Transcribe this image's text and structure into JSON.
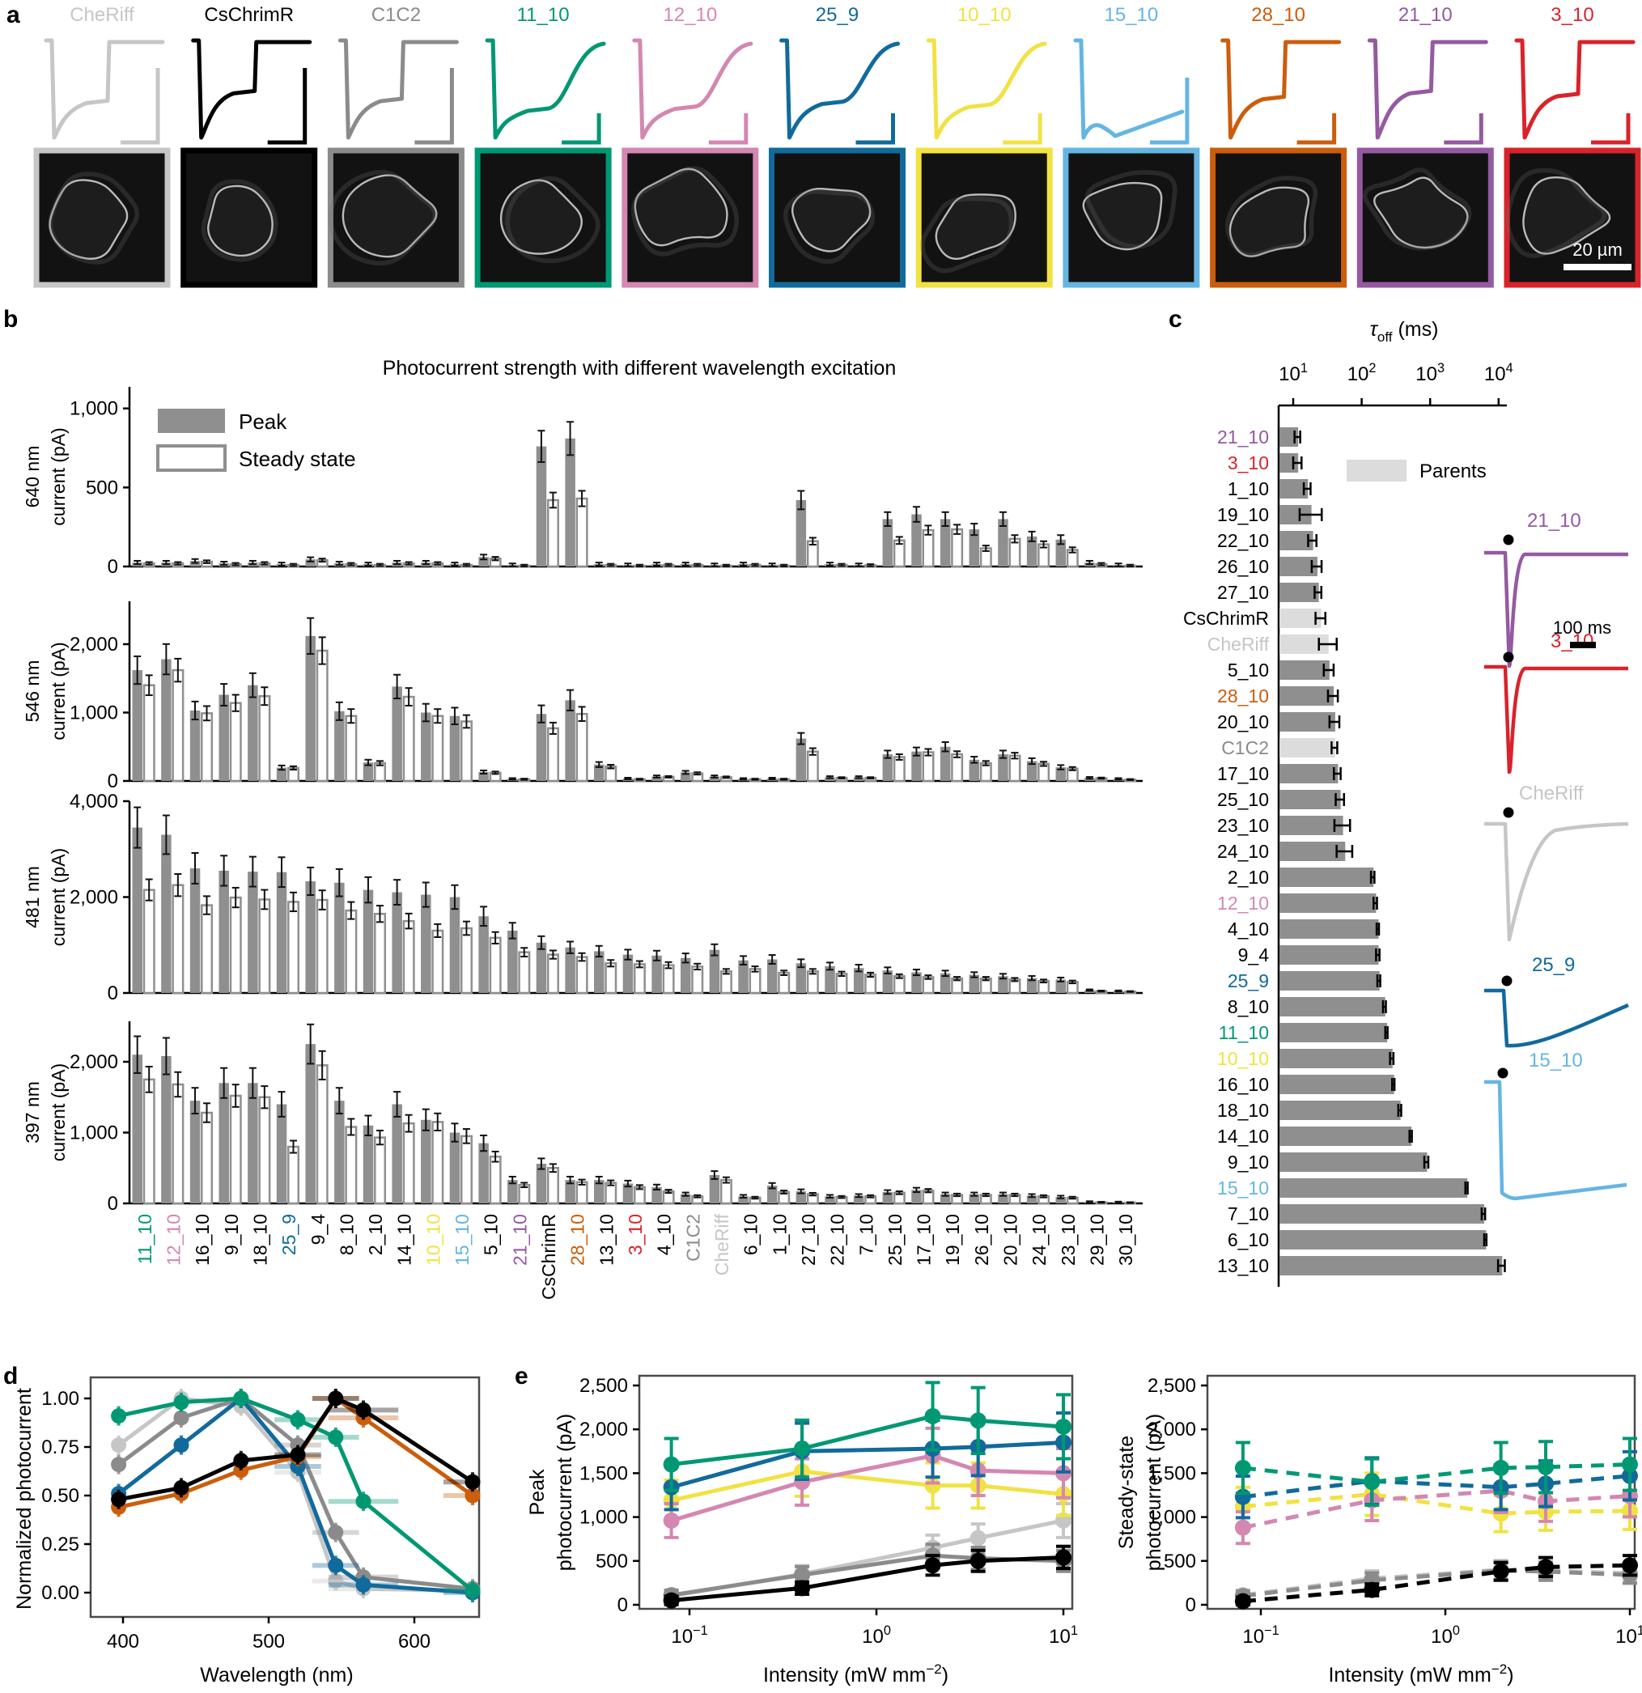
{
  "panels": {
    "a": "a",
    "b": "b",
    "c": "c",
    "d": "d",
    "e": "e"
  },
  "colors": {
    "CheRiff": "#C6C6C6",
    "CsChrimR": "#000000",
    "C1C2": "#8B8B8B",
    "11_10": "#009873",
    "12_10": "#D487B0",
    "25_9": "#116A9C",
    "10_10": "#F1E243",
    "15_10": "#65B5E2",
    "28_10": "#CB5D0C",
    "21_10": "#9559A2",
    "3_10": "#D9232B",
    "bar": "#8F8F8F",
    "parent_bar": "#DCDCDC",
    "frame": "#4A4A4A"
  },
  "panel_a": {
    "scale_bar": "20 µm",
    "variants": [
      {
        "name": "CheRiff",
        "ss": 0.62,
        "off": "fast",
        "tall": true
      },
      {
        "name": "CsChrimR",
        "ss": 0.52,
        "off": "fast",
        "tall": true
      },
      {
        "name": "C1C2",
        "ss": 0.6,
        "off": "fast",
        "tall": true
      },
      {
        "name": "11_10",
        "ss": 0.7,
        "off": "slow"
      },
      {
        "name": "12_10",
        "ss": 0.68,
        "off": "slow"
      },
      {
        "name": "25_9",
        "ss": 0.63,
        "off": "slow"
      },
      {
        "name": "10_10",
        "ss": 0.66,
        "off": "slow"
      },
      {
        "name": "15_10",
        "ss": 0.88,
        "off": "none",
        "tall": true
      },
      {
        "name": "28_10",
        "ss": 0.58,
        "off": "fast"
      },
      {
        "name": "21_10",
        "ss": 0.52,
        "off": "fast"
      },
      {
        "name": "3_10",
        "ss": 0.55,
        "off": "fast"
      }
    ]
  },
  "chart_data": [
    {
      "id": "b",
      "type": "bar",
      "title": "Photocurrent strength with different wavelength excitation",
      "legend": [
        "Peak",
        "Steady state"
      ],
      "categories": [
        "11_10",
        "12_10",
        "16_10",
        "9_10",
        "18_10",
        "25_9",
        "9_4",
        "8_10",
        "2_10",
        "14_10",
        "10_10",
        "15_10",
        "5_10",
        "21_10",
        "CsChrimR",
        "28_10",
        "13_10",
        "3_10",
        "4_10",
        "C1C2",
        "CheRiff",
        "6_10",
        "1_10",
        "27_10",
        "22_10",
        "7_10",
        "25_10",
        "17_10",
        "19_10",
        "26_10",
        "20_10",
        "24_10",
        "23_10",
        "29_10",
        "30_10"
      ],
      "err_frac_peak": 0.12,
      "err_frac_steady": 0.1,
      "subplots": [
        {
          "ylabel": [
            "640 nm",
            "current (pA)"
          ],
          "yticks": [
            0,
            500,
            1000
          ],
          "peak": [
            25,
            25,
            35,
            20,
            25,
            15,
            45,
            20,
            15,
            25,
            25,
            15,
            60,
            10,
            760,
            810,
            15,
            10,
            15,
            15,
            10,
            15,
            10,
            420,
            15,
            10,
            300,
            330,
            300,
            235,
            300,
            190,
            170,
            25,
            10
          ],
          "steady": [
            20,
            20,
            30,
            15,
            20,
            10,
            40,
            15,
            10,
            20,
            20,
            10,
            50,
            5,
            420,
            430,
            10,
            5,
            10,
            10,
            5,
            10,
            5,
            160,
            10,
            8,
            165,
            230,
            235,
            115,
            175,
            140,
            105,
            15,
            5
          ]
        },
        {
          "ylabel": [
            "546 nm",
            "current (pA)"
          ],
          "yticks": [
            0,
            1000,
            2000
          ],
          "peak": [
            1620,
            1780,
            1030,
            1260,
            1400,
            195,
            2120,
            1020,
            270,
            1380,
            1000,
            950,
            130,
            30,
            980,
            1180,
            240,
            35,
            65,
            125,
            65,
            30,
            35,
            620,
            55,
            55,
            390,
            430,
            500,
            310,
            390,
            290,
            200,
            45,
            30
          ],
          "steady": [
            1400,
            1620,
            990,
            1140,
            1240,
            190,
            1905,
            950,
            260,
            1230,
            950,
            870,
            120,
            25,
            770,
            980,
            210,
            25,
            60,
            110,
            55,
            25,
            25,
            430,
            45,
            45,
            350,
            420,
            390,
            260,
            370,
            250,
            180,
            40,
            20
          ]
        },
        {
          "ylabel": [
            "481 nm",
            "current (pA)"
          ],
          "yticks": [
            0,
            2000,
            4000
          ],
          "peak": [
            3450,
            3300,
            2600,
            2550,
            2530,
            2520,
            2330,
            2300,
            2150,
            2100,
            2050,
            2000,
            1600,
            1300,
            1050,
            950,
            870,
            800,
            780,
            730,
            900,
            680,
            700,
            620,
            560,
            520,
            470,
            430,
            410,
            380,
            350,
            310,
            280,
            60,
            40
          ],
          "steady": [
            2150,
            2250,
            1830,
            1990,
            1950,
            1900,
            1940,
            1720,
            1650,
            1500,
            1300,
            1350,
            1150,
            850,
            800,
            750,
            620,
            600,
            580,
            550,
            450,
            500,
            420,
            450,
            400,
            380,
            350,
            330,
            300,
            300,
            280,
            250,
            230,
            40,
            30
          ]
        },
        {
          "ylabel": [
            "397 nm",
            "current (pA)"
          ],
          "yticks": [
            0,
            1000,
            2000
          ],
          "peak": [
            2100,
            2080,
            1450,
            1700,
            1700,
            1400,
            2250,
            1450,
            1100,
            1400,
            1180,
            1000,
            850,
            330,
            560,
            330,
            330,
            280,
            230,
            130,
            400,
            100,
            250,
            170,
            100,
            110,
            160,
            190,
            130,
            130,
            130,
            110,
            90,
            20,
            15
          ],
          "steady": [
            1750,
            1680,
            1280,
            1520,
            1500,
            800,
            1950,
            1080,
            930,
            1130,
            1150,
            950,
            660,
            260,
            500,
            300,
            290,
            230,
            170,
            100,
            330,
            80,
            160,
            130,
            90,
            100,
            150,
            180,
            120,
            120,
            120,
            100,
            80,
            15,
            10
          ]
        }
      ]
    },
    {
      "id": "c",
      "type": "hbar-log",
      "axis_title": {
        "sym": "τ",
        "sub": "off",
        "unit": " (ms)"
      },
      "tick_exponents": [
        1,
        2,
        3,
        4
      ],
      "legend": "Parents",
      "scalebar": "100 ms",
      "rows": [
        {
          "name": "21_10",
          "value": 11.5,
          "errf": 1.1
        },
        {
          "name": "3_10",
          "value": 11.5,
          "errf": 1.15
        },
        {
          "name": "1_10",
          "value": 16,
          "errf": 1.12
        },
        {
          "name": "19_10",
          "value": 18,
          "errf": 1.45
        },
        {
          "name": "22_10",
          "value": 19,
          "errf": 1.15
        },
        {
          "name": "26_10",
          "value": 22,
          "errf": 1.18
        },
        {
          "name": "27_10",
          "value": 23,
          "errf": 1.12
        },
        {
          "name": "CsChrimR",
          "value": 25,
          "errf": 1.18,
          "parent": true
        },
        {
          "name": "CheRiff",
          "value": 32,
          "errf": 1.35,
          "parent": true
        },
        {
          "name": "5_10",
          "value": 33,
          "errf": 1.18
        },
        {
          "name": "28_10",
          "value": 38,
          "errf": 1.18
        },
        {
          "name": "20_10",
          "value": 40,
          "errf": 1.18
        },
        {
          "name": "C1C2",
          "value": 40,
          "errf": 1.1,
          "parent": true
        },
        {
          "name": "17_10",
          "value": 44,
          "errf": 1.12
        },
        {
          "name": "25_10",
          "value": 48,
          "errf": 1.15
        },
        {
          "name": "23_10",
          "value": 52,
          "errf": 1.3
        },
        {
          "name": "24_10",
          "value": 56,
          "errf": 1.3
        },
        {
          "name": "2_10",
          "value": 145,
          "errf": 1.06
        },
        {
          "name": "12_10",
          "value": 158,
          "errf": 1.06
        },
        {
          "name": "4_10",
          "value": 172,
          "errf": 1.04
        },
        {
          "name": "9_4",
          "value": 172,
          "errf": 1.06
        },
        {
          "name": "25_9",
          "value": 178,
          "errf": 1.05
        },
        {
          "name": "8_10",
          "value": 215,
          "errf": 1.05
        },
        {
          "name": "11_10",
          "value": 230,
          "errf": 1.04
        },
        {
          "name": "10_10",
          "value": 275,
          "errf": 1.06
        },
        {
          "name": "16_10",
          "value": 290,
          "errf": 1.04
        },
        {
          "name": "18_10",
          "value": 360,
          "errf": 1.05
        },
        {
          "name": "14_10",
          "value": 520,
          "errf": 1.04
        },
        {
          "name": "9_10",
          "value": 880,
          "errf": 1.07
        },
        {
          "name": "15_10",
          "value": 3400,
          "errf": 1.04
        },
        {
          "name": "7_10",
          "value": 6000,
          "errf": 1.06
        },
        {
          "name": "6_10",
          "value": 6400,
          "errf": 1.04
        },
        {
          "name": "13_10",
          "value": 11000,
          "errf": 1.12
        }
      ],
      "insets": [
        {
          "name": "21_10",
          "kind": "spike-fast"
        },
        {
          "name": "3_10",
          "kind": "spike-fast"
        },
        {
          "name": "CheRiff",
          "kind": "spike-med"
        },
        {
          "name": "25_9",
          "kind": "spike-slow"
        },
        {
          "name": "15_10",
          "kind": "step"
        }
      ]
    },
    {
      "id": "d",
      "type": "line",
      "xlabel": "Wavelength (nm)",
      "ylabel": "Normalized photocurrent",
      "xticks": [
        400,
        500,
        600
      ],
      "yticks": [
        0.0,
        0.25,
        0.5,
        0.75,
        1.0
      ],
      "x": [
        397,
        440,
        481,
        520,
        546,
        565,
        640
      ],
      "xerr": [
        0,
        0,
        0,
        16,
        16,
        24,
        20
      ],
      "yerr": 0.05,
      "series": [
        {
          "name": "CheRiff",
          "values": [
            0.76,
            1.0,
            0.96,
            0.62,
            0.06,
            0.02,
            0.01
          ]
        },
        {
          "name": "C1C2",
          "values": [
            0.66,
            0.9,
            1.0,
            0.76,
            0.31,
            0.08,
            0.02
          ]
        },
        {
          "name": "25_9",
          "values": [
            0.51,
            0.76,
            1.0,
            0.65,
            0.14,
            0.04,
            0.0
          ]
        },
        {
          "name": "11_10",
          "values": [
            0.91,
            0.98,
            1.0,
            0.89,
            0.8,
            0.47,
            0.01
          ]
        },
        {
          "name": "28_10",
          "values": [
            0.44,
            0.51,
            0.63,
            0.7,
            1.0,
            0.9,
            0.5
          ]
        },
        {
          "name": "CsChrimR",
          "values": [
            0.48,
            0.54,
            0.68,
            0.71,
            1.0,
            0.94,
            0.57
          ]
        }
      ]
    },
    {
      "id": "e1",
      "type": "line-logx",
      "dashed": false,
      "xlabel": {
        "pre": "Intensity (mW mm",
        "sup": "−2",
        "post": ")"
      },
      "ylabel": [
        "Peak",
        "photocurrent (pA)"
      ],
      "yticks": [
        0,
        500,
        1000,
        1500,
        2000,
        2500
      ],
      "xtick_exponents": [
        -1,
        0,
        1
      ],
      "x": [
        0.08,
        0.4,
        2,
        3.5,
        10
      ],
      "err_frac": 0.16,
      "series": [
        {
          "name": "CheRiff",
          "values": [
            100,
            350,
            650,
            760,
            960
          ]
        },
        {
          "name": "C1C2",
          "values": [
            110,
            340,
            560,
            530,
            500
          ]
        },
        {
          "name": "CsChrimR",
          "values": [
            50,
            190,
            450,
            500,
            540
          ]
        },
        {
          "name": "10_10",
          "values": [
            1190,
            1520,
            1360,
            1360,
            1260
          ]
        },
        {
          "name": "12_10",
          "values": [
            960,
            1400,
            1700,
            1530,
            1500
          ]
        },
        {
          "name": "25_9",
          "values": [
            1340,
            1750,
            1780,
            1800,
            1850
          ]
        },
        {
          "name": "11_10",
          "values": [
            1600,
            1780,
            2150,
            2100,
            2030
          ]
        }
      ]
    },
    {
      "id": "e2",
      "type": "line-logx",
      "dashed": true,
      "xlabel": {
        "pre": "Intensity (mW mm",
        "sup": "−2",
        "post": ")"
      },
      "ylabel": [
        "Steady-state",
        "photocurrent (pA)"
      ],
      "yticks": [
        0,
        500,
        1000,
        1500,
        2000,
        2500
      ],
      "xtick_exponents": [
        -1,
        0,
        1
      ],
      "x": [
        0.08,
        0.4,
        2,
        3.5,
        10
      ],
      "err_frac": 0.16,
      "series": [
        {
          "name": "CheRiff",
          "values": [
            110,
            300,
            400,
            390,
            360
          ]
        },
        {
          "name": "C1C2",
          "values": [
            100,
            280,
            390,
            380,
            340
          ]
        },
        {
          "name": "CsChrimR",
          "values": [
            40,
            170,
            380,
            430,
            450
          ]
        },
        {
          "name": "10_10",
          "values": [
            1120,
            1260,
            1040,
            1060,
            1070
          ]
        },
        {
          "name": "12_10",
          "values": [
            880,
            1190,
            1300,
            1180,
            1240
          ]
        },
        {
          "name": "25_9",
          "values": [
            1230,
            1410,
            1340,
            1380,
            1470
          ]
        },
        {
          "name": "11_10",
          "values": [
            1560,
            1400,
            1560,
            1570,
            1600
          ]
        }
      ]
    }
  ]
}
